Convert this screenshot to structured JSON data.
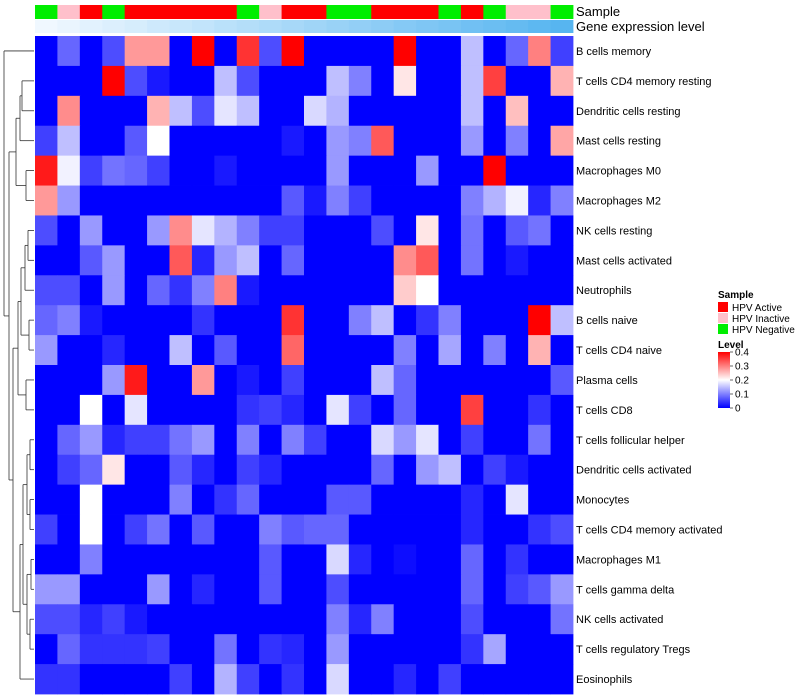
{
  "chart_data": {
    "type": "heatmap",
    "title": "",
    "annotation_tracks": [
      "Sample",
      "Gene expression level"
    ],
    "sample_groups": [
      "Negative",
      "Inactive",
      "Active",
      "Negative",
      "Active",
      "Active",
      "Active",
      "Active",
      "Active",
      "Negative",
      "Inactive",
      "Active",
      "Active",
      "Negative",
      "Negative",
      "Active",
      "Active",
      "Active",
      "Negative",
      "Active",
      "Negative",
      "Inactive",
      "Inactive",
      "Negative"
    ],
    "expression_level": [
      0.0,
      0.04,
      0.09,
      0.13,
      0.17,
      0.22,
      0.26,
      0.3,
      0.35,
      0.39,
      0.43,
      0.48,
      0.52,
      0.57,
      0.61,
      0.65,
      0.7,
      0.74,
      0.78,
      0.83,
      0.87,
      0.91,
      0.96,
      1.0
    ],
    "rows": [
      "B cells memory",
      "T cells CD4 memory resting",
      "Dendritic cells resting",
      "Mast cells resting",
      "Macrophages M0",
      "Macrophages M2",
      "NK cells resting",
      "Mast cells activated",
      "Neutrophils",
      "B cells naive",
      "T cells CD4 naive",
      "Plasma cells",
      "T cells CD8",
      "T cells follicular helper",
      "Dendritic cells activated",
      "Monocytes",
      "T cells CD4 memory activated",
      "Macrophages M1",
      "T cells gamma delta",
      "NK cells activated",
      "T cells regulatory  Tregs",
      "Eosinophils"
    ],
    "values": [
      [
        0.0,
        0.08,
        0.0,
        0.06,
        0.28,
        0.28,
        0.0,
        0.4,
        0.0,
        0.36,
        0.06,
        0.4,
        0.0,
        0.0,
        0.0,
        0.0,
        0.4,
        0.0,
        0.0,
        0.15,
        0.0,
        0.08,
        0.3,
        0.05
      ],
      [
        0.0,
        0.0,
        0.0,
        0.4,
        0.06,
        0.02,
        0.0,
        0.0,
        0.15,
        0.06,
        0.0,
        0.0,
        0.0,
        0.15,
        0.1,
        0.0,
        0.22,
        0.0,
        0.0,
        0.15,
        0.35,
        0.0,
        0.0,
        0.26
      ],
      [
        0.0,
        0.29,
        0.0,
        0.0,
        0.0,
        0.26,
        0.15,
        0.06,
        0.18,
        0.15,
        0.0,
        0.0,
        0.17,
        0.14,
        0.0,
        0.0,
        0.0,
        0.0,
        0.0,
        0.15,
        0.0,
        0.25,
        0.0,
        0.0
      ],
      [
        0.05,
        0.15,
        0.0,
        0.0,
        0.07,
        0.2,
        0.0,
        0.0,
        0.0,
        0.0,
        0.0,
        0.02,
        0.0,
        0.12,
        0.1,
        0.33,
        0.0,
        0.0,
        0.0,
        0.12,
        0.0,
        0.1,
        0.0,
        0.27
      ],
      [
        0.38,
        0.19,
        0.05,
        0.09,
        0.08,
        0.05,
        0.0,
        0.0,
        0.02,
        0.0,
        0.0,
        0.0,
        0.0,
        0.12,
        0.0,
        0.0,
        0.0,
        0.12,
        0.0,
        0.0,
        0.4,
        0.0,
        0.0,
        0.0
      ],
      [
        0.28,
        0.12,
        0.0,
        0.0,
        0.0,
        0.0,
        0.0,
        0.0,
        0.0,
        0.0,
        0.0,
        0.07,
        0.02,
        0.1,
        0.05,
        0.0,
        0.0,
        0.0,
        0.0,
        0.1,
        0.14,
        0.19,
        0.03,
        0.1
      ],
      [
        0.06,
        0.0,
        0.12,
        0.0,
        0.0,
        0.12,
        0.29,
        0.18,
        0.14,
        0.1,
        0.05,
        0.05,
        0.0,
        0.0,
        0.0,
        0.06,
        0.0,
        0.22,
        0.0,
        0.09,
        0.0,
        0.07,
        0.09,
        0.0
      ],
      [
        0.0,
        0.0,
        0.07,
        0.12,
        0.0,
        0.0,
        0.33,
        0.03,
        0.12,
        0.15,
        0.0,
        0.08,
        0.0,
        0.0,
        0.0,
        0.0,
        0.29,
        0.33,
        0.0,
        0.09,
        0.0,
        0.02,
        0.0,
        0.0
      ],
      [
        0.06,
        0.06,
        0.0,
        0.12,
        0.0,
        0.08,
        0.04,
        0.1,
        0.3,
        0.02,
        0.0,
        0.0,
        0.0,
        0.0,
        0.0,
        0.0,
        0.24,
        0.2,
        0.0,
        0.0,
        0.0,
        0.0,
        0.0,
        0.0
      ],
      [
        0.08,
        0.1,
        0.02,
        0.0,
        0.0,
        0.0,
        0.0,
        0.04,
        0.0,
        0.0,
        0.0,
        0.36,
        0.0,
        0.0,
        0.1,
        0.15,
        0.0,
        0.04,
        0.1,
        0.0,
        0.0,
        0.0,
        0.4,
        0.15
      ],
      [
        0.12,
        0.0,
        0.0,
        0.03,
        0.0,
        0.0,
        0.15,
        0.0,
        0.07,
        0.0,
        0.0,
        0.32,
        0.0,
        0.0,
        0.0,
        0.0,
        0.1,
        0.0,
        0.13,
        0.0,
        0.1,
        0.0,
        0.26,
        0.0
      ],
      [
        0.0,
        0.0,
        0.0,
        0.12,
        0.38,
        0.0,
        0.0,
        0.28,
        0.0,
        0.02,
        0.0,
        0.05,
        0.0,
        0.0,
        0.0,
        0.15,
        0.08,
        0.0,
        0.0,
        0.0,
        0.0,
        0.0,
        0.0,
        0.07
      ],
      [
        0.0,
        0.0,
        0.2,
        0.0,
        0.18,
        0.0,
        0.0,
        0.0,
        0.0,
        0.04,
        0.05,
        0.03,
        0.0,
        0.18,
        0.05,
        0.0,
        0.08,
        0.0,
        0.0,
        0.35,
        0.0,
        0.0,
        0.04,
        0.0
      ],
      [
        0.0,
        0.08,
        0.12,
        0.03,
        0.05,
        0.05,
        0.09,
        0.12,
        0.0,
        0.1,
        0.0,
        0.1,
        0.05,
        0.0,
        0.0,
        0.17,
        0.12,
        0.18,
        0.0,
        0.05,
        0.0,
        0.0,
        0.09,
        0.0
      ],
      [
        0.0,
        0.05,
        0.08,
        0.22,
        0.0,
        0.0,
        0.07,
        0.03,
        0.0,
        0.05,
        0.03,
        0.0,
        0.0,
        0.0,
        0.0,
        0.08,
        0.0,
        0.12,
        0.15,
        0.0,
        0.05,
        0.02,
        0.0,
        0.0
      ],
      [
        0.0,
        0.0,
        0.2,
        0.0,
        0.0,
        0.0,
        0.1,
        0.0,
        0.04,
        0.08,
        0.0,
        0.0,
        0.0,
        0.07,
        0.07,
        0.0,
        0.0,
        0.0,
        0.0,
        0.03,
        0.0,
        0.18,
        0.0,
        0.0
      ],
      [
        0.05,
        0.0,
        0.2,
        0.0,
        0.05,
        0.09,
        0.0,
        0.07,
        0.0,
        0.0,
        0.1,
        0.07,
        0.08,
        0.08,
        0.0,
        0.0,
        0.0,
        0.0,
        0.0,
        0.03,
        0.0,
        0.0,
        0.04,
        0.06
      ],
      [
        0.0,
        0.0,
        0.1,
        0.0,
        0.0,
        0.0,
        0.0,
        0.0,
        0.0,
        0.0,
        0.07,
        0.0,
        0.0,
        0.17,
        0.03,
        0.0,
        0.01,
        0.0,
        0.0,
        0.08,
        0.0,
        0.04,
        0.0,
        0.0
      ],
      [
        0.12,
        0.12,
        0.0,
        0.0,
        0.0,
        0.12,
        0.0,
        0.03,
        0.0,
        0.0,
        0.07,
        0.0,
        0.0,
        0.06,
        0.0,
        0.0,
        0.0,
        0.0,
        0.0,
        0.08,
        0.0,
        0.05,
        0.07,
        0.12
      ],
      [
        0.06,
        0.06,
        0.03,
        0.05,
        0.02,
        0.0,
        0.0,
        0.0,
        0.0,
        0.0,
        0.0,
        0.0,
        0.0,
        0.1,
        0.03,
        0.1,
        0.0,
        0.0,
        0.0,
        0.06,
        0.0,
        0.0,
        0.0,
        0.09
      ],
      [
        0.0,
        0.08,
        0.04,
        0.04,
        0.04,
        0.05,
        0.0,
        0.0,
        0.09,
        0.0,
        0.04,
        0.03,
        0.0,
        0.12,
        0.0,
        0.0,
        0.0,
        0.0,
        0.0,
        0.04,
        0.13,
        0.0,
        0.0,
        0.0
      ],
      [
        0.04,
        0.04,
        0.0,
        0.0,
        0.0,
        0.0,
        0.05,
        0.0,
        0.14,
        0.05,
        0.0,
        0.04,
        0.0,
        0.17,
        0.0,
        0.0,
        0.03,
        0.0,
        0.05,
        0.0,
        0.0,
        0.0,
        0.0,
        0.0
      ]
    ],
    "legend": {
      "sample": {
        "title": "Sample",
        "items": [
          {
            "label": "HPV Active",
            "color": "#ff0000"
          },
          {
            "label": "HPV Inactive",
            "color": "#ffc0cb"
          },
          {
            "label": "HPV Negative",
            "color": "#00ee00"
          }
        ]
      },
      "level": {
        "title": "Level",
        "range": [
          0,
          0.4
        ],
        "ticks": [
          0.4,
          0.3,
          0.2,
          0.1,
          0
        ]
      }
    },
    "colors": {
      "low": "#0000ff",
      "mid": "#ffffff",
      "high": "#ff0000",
      "expr_low": "#f0f8ff",
      "expr_high": "#57b5f0"
    }
  }
}
